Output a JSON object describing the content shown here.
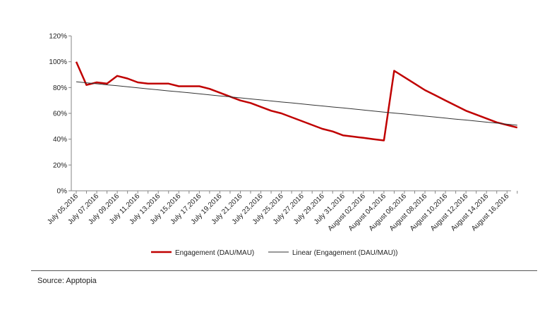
{
  "chart_data": {
    "type": "line",
    "title": "",
    "xlabel": "",
    "ylabel": "",
    "ylim": [
      0,
      1.2
    ],
    "y_ticks": [
      "0%",
      "20%",
      "40%",
      "60%",
      "80%",
      "100%",
      "120%"
    ],
    "x_tick_labels": [
      "July 05,2016",
      "July 07,2016",
      "July 09,2016",
      "July 11,2016",
      "July 13,2016",
      "July 15,2016",
      "July 17,2016",
      "July 19,2016",
      "July 21,2016",
      "July 23,2016",
      "July 25,2016",
      "July 27,2016",
      "July 29,2016",
      "July 31,2016",
      "August 02,2016",
      "August 04,2016",
      "August 06,2016",
      "August 08,2016",
      "August 10,2016",
      "August 12,2016",
      "August 14,2016",
      "August 16,2016"
    ],
    "x": [
      "2016-07-05",
      "2016-07-06",
      "2016-07-07",
      "2016-07-08",
      "2016-07-09",
      "2016-07-10",
      "2016-07-11",
      "2016-07-12",
      "2016-07-13",
      "2016-07-14",
      "2016-07-15",
      "2016-07-16",
      "2016-07-17",
      "2016-07-18",
      "2016-07-19",
      "2016-07-20",
      "2016-07-21",
      "2016-07-22",
      "2016-07-23",
      "2016-07-24",
      "2016-07-25",
      "2016-07-26",
      "2016-07-27",
      "2016-07-28",
      "2016-07-29",
      "2016-07-30",
      "2016-07-31",
      "2016-08-01",
      "2016-08-02",
      "2016-08-03",
      "2016-08-04",
      "2016-08-05",
      "2016-08-06",
      "2016-08-07",
      "2016-08-08",
      "2016-08-09",
      "2016-08-10",
      "2016-08-11",
      "2016-08-12",
      "2016-08-13",
      "2016-08-14",
      "2016-08-15",
      "2016-08-16",
      "2016-08-17"
    ],
    "series": [
      {
        "name": "Engagement (DAU/MAU)",
        "color": "#c00000",
        "values": [
          1.0,
          0.82,
          0.84,
          0.83,
          0.89,
          0.87,
          0.84,
          0.83,
          0.83,
          0.83,
          0.81,
          0.81,
          0.81,
          0.79,
          0.76,
          0.73,
          0.7,
          0.68,
          0.65,
          0.62,
          0.6,
          0.57,
          0.54,
          0.51,
          0.48,
          0.46,
          0.43,
          0.42,
          0.41,
          0.4,
          0.39,
          0.93,
          0.88,
          0.83,
          0.78,
          0.74,
          0.7,
          0.66,
          0.62,
          0.59,
          0.56,
          0.53,
          0.51,
          0.49
        ]
      },
      {
        "name": "Linear (Engagement (DAU/MAU))",
        "color": "#333333",
        "values": [
          0.845,
          0.837,
          0.829,
          0.821,
          0.814,
          0.806,
          0.798,
          0.79,
          0.782,
          0.774,
          0.767,
          0.759,
          0.751,
          0.743,
          0.735,
          0.728,
          0.72,
          0.712,
          0.704,
          0.696,
          0.688,
          0.681,
          0.673,
          0.665,
          0.657,
          0.649,
          0.642,
          0.634,
          0.626,
          0.618,
          0.61,
          0.602,
          0.595,
          0.587,
          0.579,
          0.571,
          0.563,
          0.555,
          0.548,
          0.54,
          0.532,
          0.524,
          0.516,
          0.508
        ]
      }
    ],
    "grid": false,
    "legend_position": "bottom"
  },
  "footer": {
    "source": "Source: Apptopia"
  }
}
